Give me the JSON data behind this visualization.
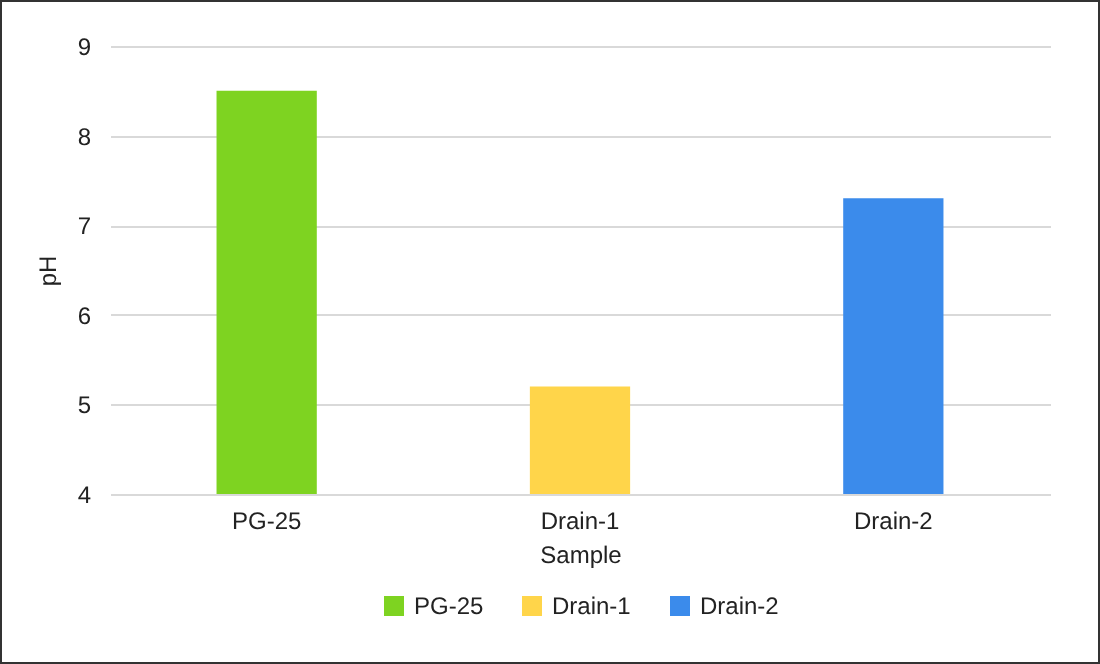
{
  "chart_data": {
    "type": "bar",
    "xlabel": "Sample",
    "ylabel": "pH",
    "categories": [
      "PG-25",
      "Drain-1",
      "Drain-2"
    ],
    "series": [
      {
        "name": "PG-25",
        "color": "#7ed321",
        "values": [
          8.5,
          null,
          null
        ]
      },
      {
        "name": "Drain-1",
        "color": "#ffd54a",
        "values": [
          null,
          5.2,
          null
        ]
      },
      {
        "name": "Drain-2",
        "color": "#3b8beb",
        "values": [
          null,
          null,
          7.3
        ]
      }
    ],
    "ylim": [
      4,
      9
    ],
    "yticks": [
      4,
      5,
      6,
      7,
      8,
      9
    ],
    "grid": "y",
    "legend": "bottom"
  }
}
